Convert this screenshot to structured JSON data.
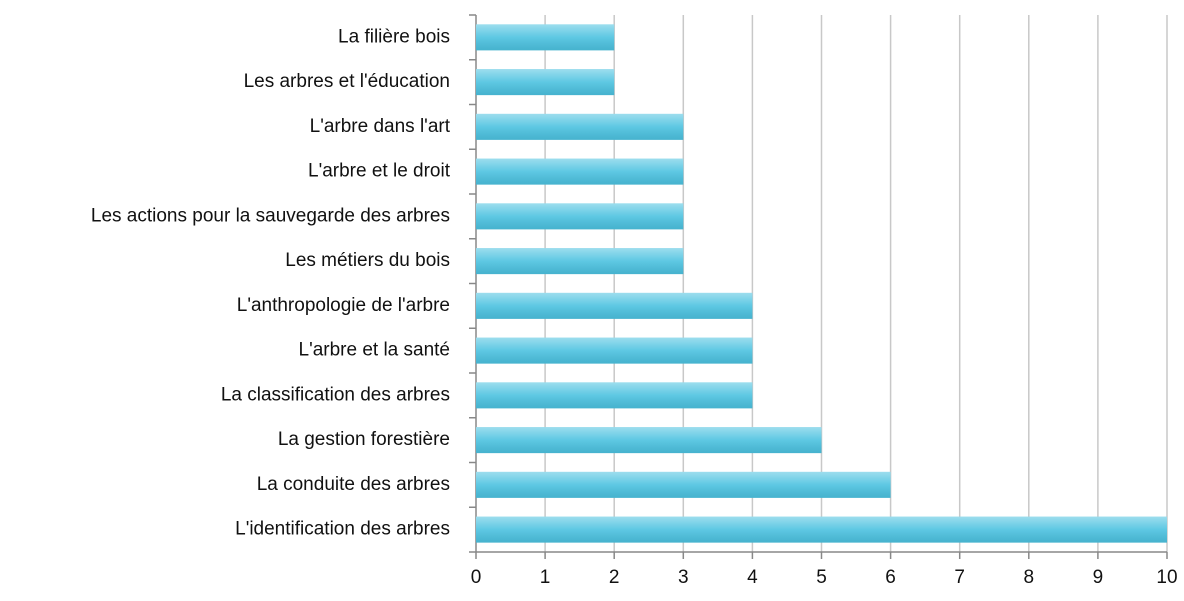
{
  "chart_data": {
    "type": "bar",
    "orientation": "horizontal",
    "categories": [
      "La filière bois",
      "Les arbres et l'éducation",
      "L'arbre dans l'art",
      "L'arbre et le droit",
      "Les actions pour la sauvegarde des arbres",
      "Les métiers du bois",
      "L'anthropologie de l'arbre",
      "L'arbre et la santé",
      "La classification des arbres",
      "La gestion forestière",
      "La conduite des arbres",
      "L'identification des arbres"
    ],
    "values": [
      2,
      2,
      3,
      3,
      3,
      3,
      4,
      4,
      4,
      5,
      6,
      10
    ],
    "color": "#4cc2e0",
    "xlim": [
      0,
      10
    ],
    "xticks": [
      0,
      1,
      2,
      3,
      4,
      5,
      6,
      7,
      8,
      9,
      10
    ],
    "grid": true
  }
}
